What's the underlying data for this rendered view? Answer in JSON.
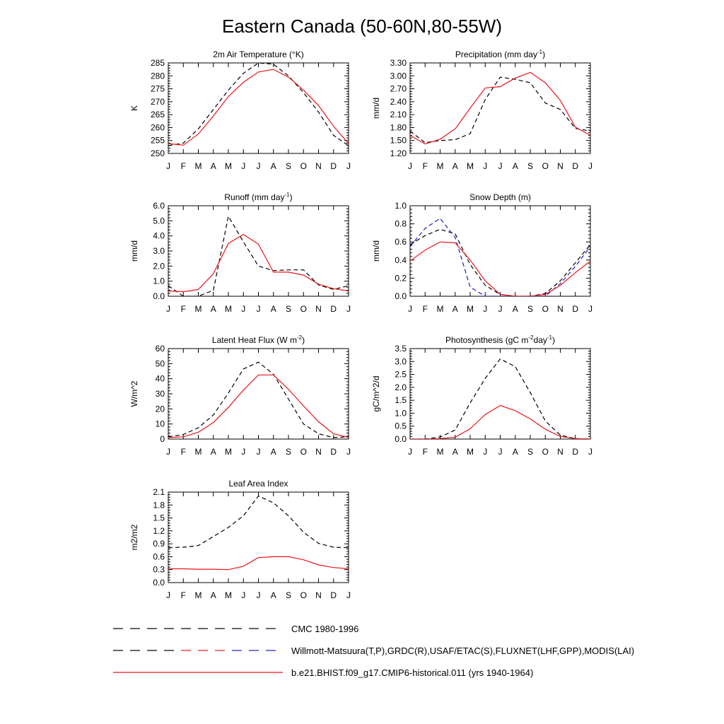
{
  "figure": {
    "title": "Eastern Canada (50-60N,80-55W)",
    "months": [
      "J",
      "F",
      "M",
      "A",
      "M",
      "J",
      "J",
      "A",
      "S",
      "O",
      "N",
      "D",
      "J"
    ]
  },
  "colors": {
    "obs": "#000000",
    "obs2": "#1a1acc",
    "model": "#e8161b"
  },
  "legend": {
    "items": [
      {
        "label": "CMC 1980-1996",
        "style": "dashed",
        "colors": [
          "#000000"
        ]
      },
      {
        "label": "Willmott-Matsuura(T,P),GRDC(R),USAF/ETAC(S),FLUXNET(LHF,GPP),MODIS(LAI)",
        "style": "dashed",
        "colors": [
          "#000000",
          "#e8161b",
          "#1a1acc"
        ]
      },
      {
        "label": "b.e21.BHIST.f09_g17.CMIP6-historical.011 (yrs 1940-1964)",
        "style": "solid",
        "colors": [
          "#e8161b"
        ]
      }
    ]
  },
  "chart_data": [
    {
      "type": "line",
      "title": "2m Air Temperature (°K)",
      "ylabel": "K",
      "ylim": [
        250,
        285
      ],
      "yticks": [
        "250",
        "255",
        "260",
        "265",
        "270",
        "275",
        "280",
        "285"
      ],
      "x": [
        "J",
        "F",
        "M",
        "A",
        "M",
        "J",
        "J",
        "A",
        "S",
        "O",
        "N",
        "D",
        "J"
      ],
      "series": [
        {
          "style": "dashed",
          "color": "#000000",
          "values": [
            253.0,
            254.0,
            259.5,
            267.0,
            274.5,
            281.0,
            285.0,
            284.5,
            280.0,
            273.5,
            266.0,
            257.0,
            253.0
          ]
        },
        {
          "style": "solid",
          "color": "#e8161b",
          "values": [
            253.8,
            253.2,
            257.5,
            264.5,
            272.0,
            277.5,
            281.5,
            282.5,
            279.5,
            274.5,
            268.5,
            260.5,
            253.8
          ]
        }
      ]
    },
    {
      "type": "line",
      "title": "Precipitation (mm day-1)",
      "ylabel": "mm/d",
      "ylim": [
        1.2,
        3.3
      ],
      "yticks": [
        "1.20",
        "1.50",
        "1.80",
        "2.10",
        "2.40",
        "2.70",
        "3.00",
        "3.30"
      ],
      "x": [
        "J",
        "F",
        "M",
        "A",
        "M",
        "J",
        "J",
        "A",
        "S",
        "O",
        "N",
        "D",
        "J"
      ],
      "series": [
        {
          "style": "dashed",
          "color": "#000000",
          "values": [
            1.72,
            1.45,
            1.5,
            1.52,
            1.66,
            2.45,
            2.97,
            2.92,
            2.84,
            2.37,
            2.22,
            1.78,
            1.72
          ]
        },
        {
          "style": "solid",
          "color": "#e8161b",
          "values": [
            1.62,
            1.42,
            1.53,
            1.77,
            2.25,
            2.72,
            2.75,
            2.95,
            3.08,
            2.84,
            2.43,
            1.81,
            1.62
          ]
        }
      ]
    },
    {
      "type": "line",
      "title": "Runoff (mm day-1)",
      "ylabel": "mm/d",
      "ylim": [
        0,
        6
      ],
      "yticks": [
        "0.0",
        "1.0",
        "2.0",
        "3.0",
        "4.0",
        "5.0",
        "6.0"
      ],
      "x": [
        "J",
        "F",
        "M",
        "A",
        "M",
        "J",
        "J",
        "A",
        "S",
        "O",
        "N",
        "D",
        "J"
      ],
      "series": [
        {
          "style": "dashed",
          "color": "#000000",
          "values": [
            0.7,
            0.0,
            0.0,
            0.4,
            5.3,
            3.6,
            2.0,
            1.7,
            1.75,
            1.75,
            0.75,
            0.45,
            0.7
          ]
        },
        {
          "style": "solid",
          "color": "#e8161b",
          "values": [
            0.35,
            0.3,
            0.45,
            1.5,
            3.5,
            4.1,
            3.45,
            1.6,
            1.6,
            1.4,
            0.8,
            0.5,
            0.35
          ]
        }
      ]
    },
    {
      "type": "line",
      "title": "Snow Depth (m)",
      "ylabel": "mm/d",
      "ylim": [
        0,
        1
      ],
      "yticks": [
        "0.0",
        "0.2",
        "0.4",
        "0.6",
        "0.8",
        "1.0"
      ],
      "x": [
        "J",
        "F",
        "M",
        "A",
        "M",
        "J",
        "J",
        "A",
        "S",
        "O",
        "N",
        "D",
        "J"
      ],
      "series": [
        {
          "style": "dashed",
          "color": "#000000",
          "values": [
            0.57,
            0.67,
            0.74,
            0.69,
            0.35,
            0.12,
            0.02,
            0.0,
            0.0,
            0.03,
            0.17,
            0.37,
            0.57
          ]
        },
        {
          "style": "dashed",
          "color": "#1a1acc",
          "values": [
            0.55,
            0.75,
            0.86,
            0.65,
            0.1,
            0.0,
            0.0,
            0.0,
            0.0,
            0.0,
            0.14,
            0.33,
            0.55
          ]
        },
        {
          "style": "solid",
          "color": "#e8161b",
          "values": [
            0.39,
            0.51,
            0.6,
            0.59,
            0.4,
            0.17,
            0.02,
            0.0,
            0.0,
            0.02,
            0.12,
            0.26,
            0.39
          ]
        }
      ]
    },
    {
      "type": "line",
      "title": "Latent Heat Flux (W m-2)",
      "ylabel": "W/m^2",
      "ylim": [
        0,
        60
      ],
      "yticks": [
        "0",
        "10",
        "20",
        "30",
        "40",
        "50",
        "60"
      ],
      "x": [
        "J",
        "F",
        "M",
        "A",
        "M",
        "J",
        "J",
        "A",
        "S",
        "O",
        "N",
        "D",
        "J"
      ],
      "series": [
        {
          "style": "dashed",
          "color": "#000000",
          "values": [
            1.5,
            3.0,
            7.5,
            16.0,
            30.5,
            46.5,
            51.0,
            43.0,
            26.5,
            10.0,
            3.5,
            1.0,
            1.5
          ]
        },
        {
          "style": "solid",
          "color": "#e8161b",
          "values": [
            1.0,
            1.5,
            4.5,
            11.0,
            21.0,
            32.5,
            42.5,
            42.5,
            33.0,
            22.0,
            11.5,
            3.5,
            1.0
          ]
        }
      ]
    },
    {
      "type": "line",
      "title": "Photosynthesis (gC m-2day-1)",
      "ylabel": "gC/m^2/d",
      "ylim": [
        0,
        3.5
      ],
      "yticks": [
        "0.0",
        "0.5",
        "1.0",
        "1.5",
        "2.0",
        "2.5",
        "3.0",
        "3.5"
      ],
      "x": [
        "J",
        "F",
        "M",
        "A",
        "M",
        "J",
        "J",
        "A",
        "S",
        "O",
        "N",
        "D",
        "J"
      ],
      "series": [
        {
          "style": "dashed",
          "color": "#000000",
          "values": [
            0.0,
            0.0,
            0.08,
            0.35,
            1.4,
            2.35,
            3.1,
            2.8,
            1.8,
            0.7,
            0.15,
            0.02,
            0.0
          ]
        },
        {
          "style": "solid",
          "color": "#e8161b",
          "values": [
            0.0,
            0.0,
            0.02,
            0.07,
            0.4,
            0.95,
            1.3,
            1.1,
            0.78,
            0.38,
            0.1,
            0.02,
            0.0
          ]
        }
      ]
    },
    {
      "type": "line",
      "title": "Leaf Area Index",
      "ylabel": "m2/m2",
      "ylim": [
        0,
        2.1
      ],
      "yticks": [
        "0.0",
        "0.3",
        "0.6",
        "0.9",
        "1.2",
        "1.5",
        "1.8",
        "2.1"
      ],
      "x": [
        "J",
        "F",
        "M",
        "A",
        "M",
        "J",
        "J",
        "A",
        "S",
        "O",
        "N",
        "D",
        "J"
      ],
      "series": [
        {
          "style": "dashed",
          "color": "#000000",
          "values": [
            0.81,
            0.82,
            0.86,
            1.07,
            1.28,
            1.55,
            2.01,
            1.85,
            1.55,
            1.17,
            0.91,
            0.82,
            0.81
          ]
        },
        {
          "style": "solid",
          "color": "#e8161b",
          "values": [
            0.32,
            0.32,
            0.31,
            0.31,
            0.3,
            0.38,
            0.58,
            0.6,
            0.6,
            0.53,
            0.41,
            0.35,
            0.32
          ]
        }
      ]
    }
  ]
}
